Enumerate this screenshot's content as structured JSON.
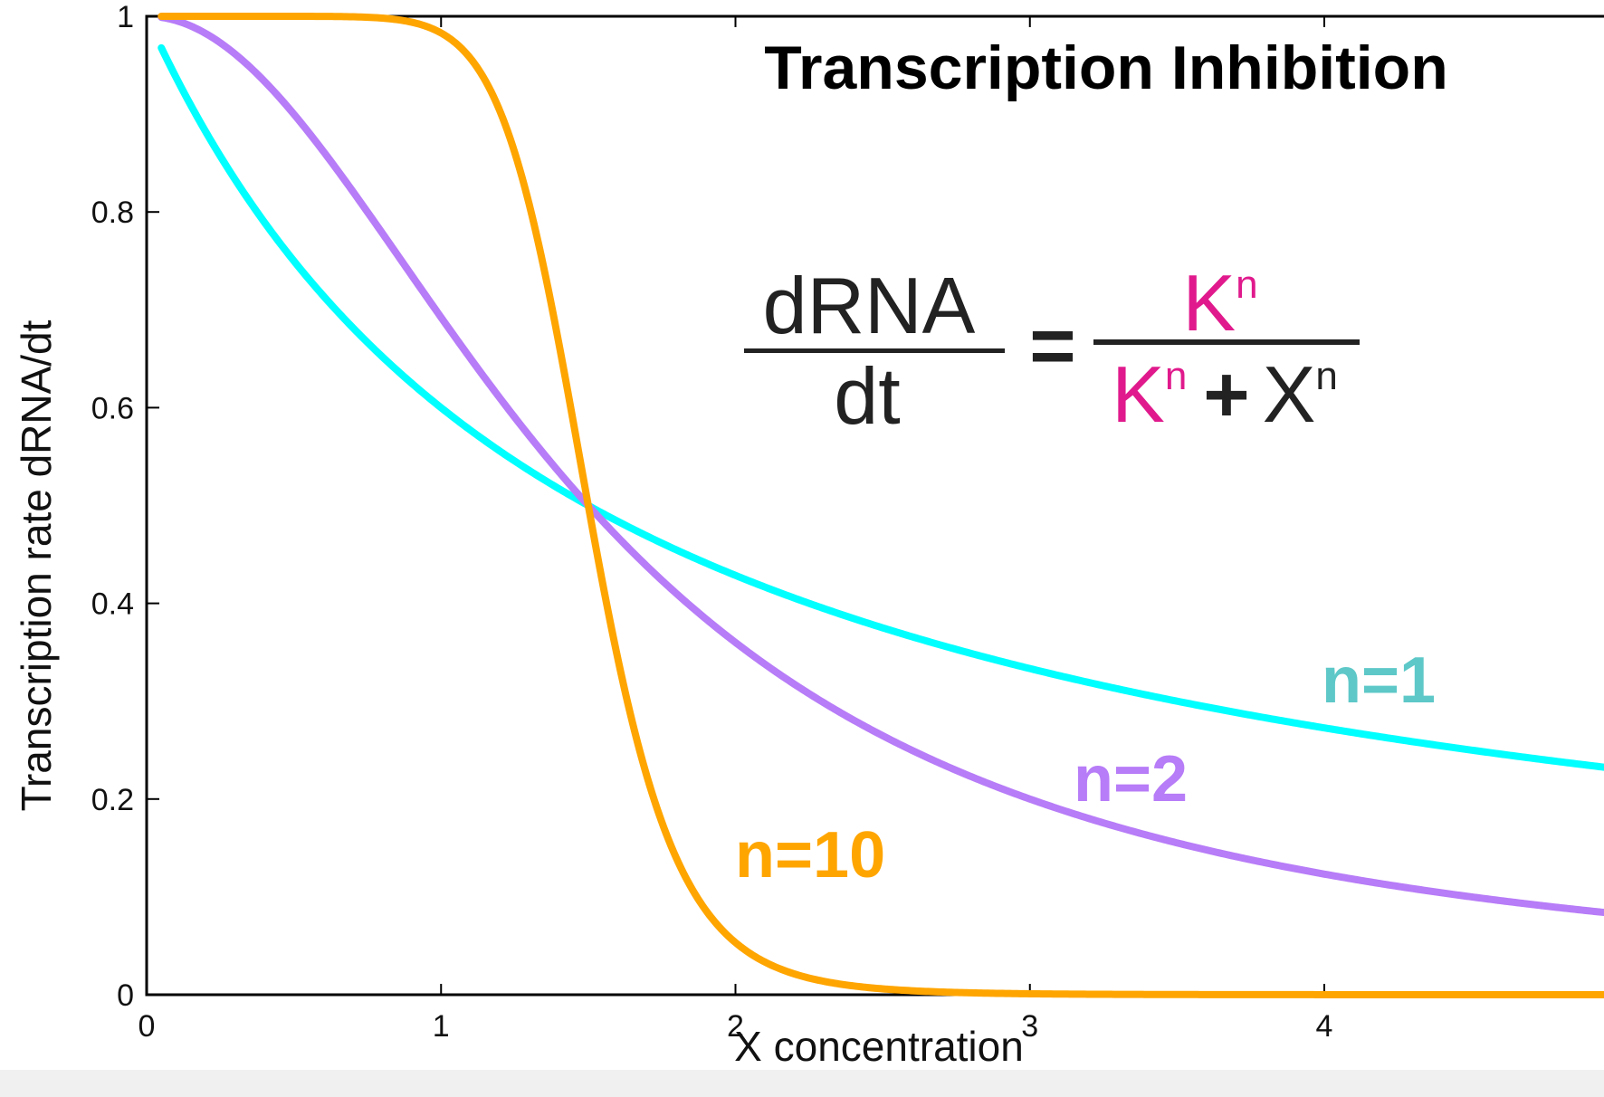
{
  "chart_data": {
    "type": "line",
    "title": "Transcription Inhibition",
    "xlabel": "X concentration",
    "ylabel": "Transcription rate dRNA/dt",
    "xlim": [
      0,
      4.95
    ],
    "ylim": [
      0,
      1
    ],
    "x_ticks": [
      "0",
      "1",
      "2",
      "3",
      "4"
    ],
    "x_tick_values": [
      0,
      1,
      2,
      3,
      4
    ],
    "y_ticks": [
      "0",
      "0.2",
      "0.4",
      "0.6",
      "0.8",
      "1"
    ],
    "y_tick_values": [
      0,
      0.2,
      0.4,
      0.6,
      0.8,
      1
    ],
    "grid": false,
    "K": 1.5,
    "series": [
      {
        "name": "n=1",
        "n": 1,
        "color": "#00ffff",
        "label_color": "#5ec8c8",
        "x_start": 0.05
      },
      {
        "name": "n=2",
        "n": 2,
        "color": "#b77cf7",
        "label_color": "#b77cf7",
        "x_start": 0.05
      },
      {
        "name": "n=10",
        "n": 10,
        "color": "#ffa500",
        "label_color": "#ffa500",
        "x_start": 0.05
      }
    ],
    "equation": {
      "lhs_numerator": "dRNA",
      "lhs_denominator": "dt",
      "equals": "=",
      "rhs_num_base": "K",
      "rhs_num_exp": "n",
      "rhs_den_base1": "K",
      "rhs_den_exp1": "n",
      "rhs_den_plus": "+",
      "rhs_den_base2": "X",
      "rhs_den_exp2": "n",
      "k_color": "#e01a8c",
      "text_color": "#222222"
    }
  }
}
